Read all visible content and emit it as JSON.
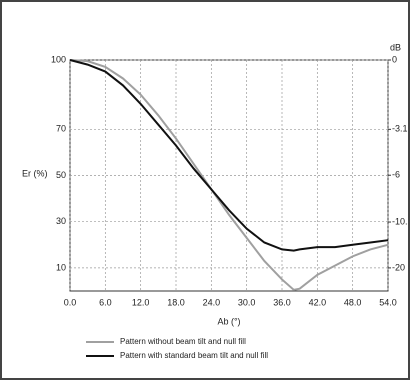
{
  "chart_data": {
    "type": "line",
    "y_label": "Er (%)",
    "y2_label": "dB",
    "x_label": "Ab (°)",
    "x": [
      0,
      3,
      6,
      9,
      12,
      15,
      18,
      21,
      24,
      27,
      30,
      33,
      36,
      38,
      39,
      42,
      45,
      48,
      51,
      54
    ],
    "series": [
      {
        "name": "Pattern without beam tilt and null fill",
        "color": "#a0a0a0",
        "values": [
          100,
          99.5,
          97,
          92,
          85,
          76,
          66,
          55,
          44,
          33,
          23,
          13,
          5,
          0.5,
          1,
          7,
          11,
          15,
          18,
          20
        ]
      },
      {
        "name": "Pattern with standard beam tilt and null fill",
        "color": "#111111",
        "values": [
          100,
          98,
          95,
          89,
          81,
          72,
          63,
          53,
          44,
          35,
          27,
          21,
          18,
          17.5,
          18,
          19,
          19,
          20,
          21,
          22
        ]
      }
    ],
    "xlim": [
      0,
      54
    ],
    "xticks": [
      {
        "value": 0,
        "label": "0.0"
      },
      {
        "value": 6,
        "label": "6.0"
      },
      {
        "value": 12,
        "label": "12.0"
      },
      {
        "value": 18,
        "label": "18.0"
      },
      {
        "value": 24,
        "label": "24.0"
      },
      {
        "value": 30,
        "label": "30.0"
      },
      {
        "value": 36,
        "label": "36.0"
      },
      {
        "value": 42,
        "label": "42.0"
      },
      {
        "value": 48,
        "label": "48.0"
      },
      {
        "value": 54,
        "label": "54.0"
      }
    ],
    "ylim": [
      0,
      100
    ],
    "yticks": [
      10,
      30,
      50,
      70,
      100
    ],
    "y2scale": "db",
    "y2ticks": [
      0,
      -3.1,
      -6,
      -10.5,
      -20
    ],
    "grid": true
  }
}
